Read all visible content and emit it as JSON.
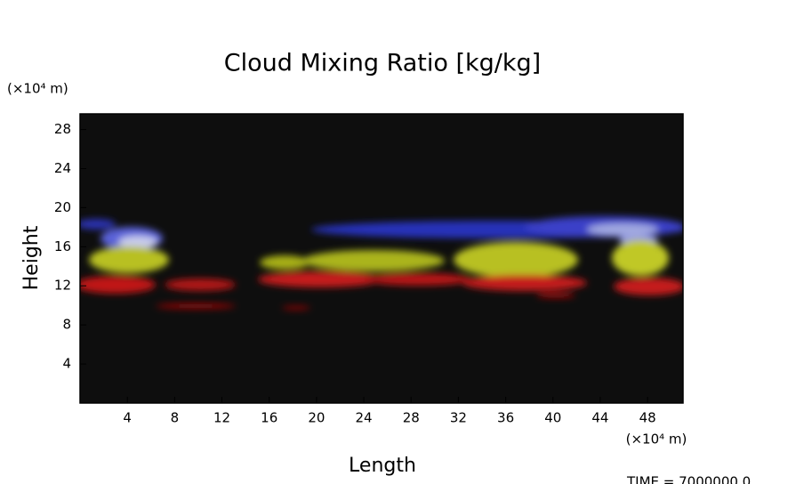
{
  "chart_data": {
    "type": "field",
    "title": "Cloud Mixing Ratio [kg/kg]",
    "x_label": "Length",
    "y_label": "Height",
    "x_unit": "(×10⁴ m)",
    "y_unit": "(×10⁴ m)",
    "annotation": "TIME = 7000000.0",
    "xlim": [
      0,
      51
    ],
    "xticks": [
      4,
      8,
      12,
      16,
      20,
      24,
      28,
      32,
      36,
      40,
      44,
      48
    ],
    "ylim": [
      0,
      29.6
    ],
    "yticks": [
      4,
      8,
      12,
      16,
      20,
      24,
      28
    ]
  }
}
